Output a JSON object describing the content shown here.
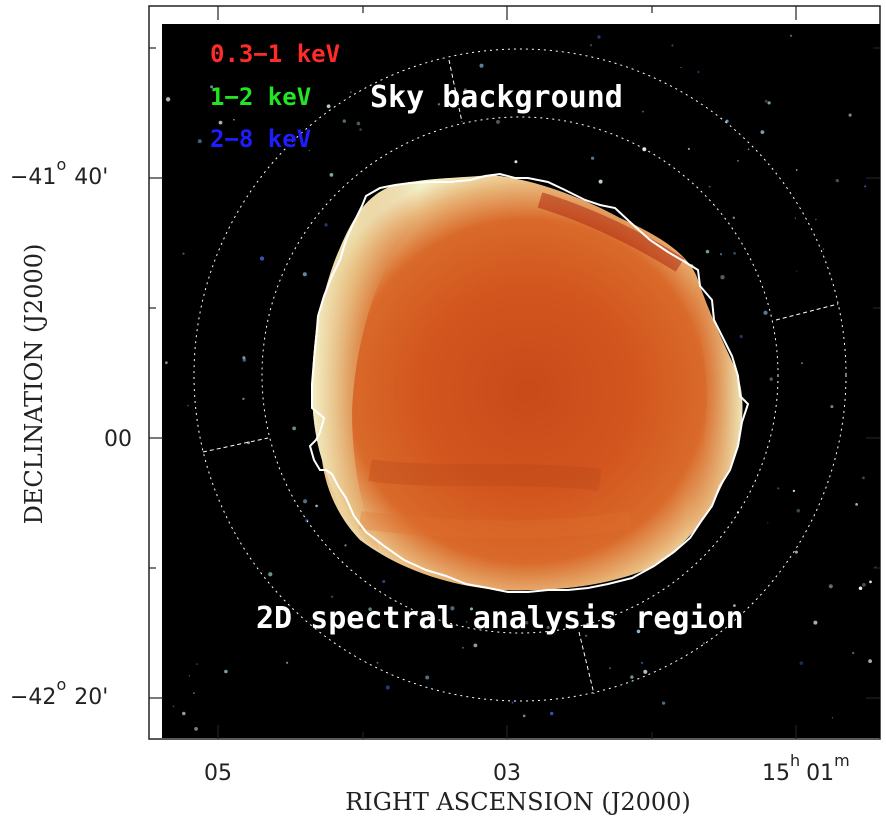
{
  "axes": {
    "x_label": "RIGHT ASCENSION (J2000)",
    "y_label": "DECLINATION (J2000)",
    "x_ticks": [
      {
        "text": "05"
      },
      {
        "text": "03"
      },
      {
        "text": "15",
        "sup_h": "h",
        "val2": "01",
        "sup_m": "m"
      }
    ],
    "y_ticks": [
      {
        "text": "−41",
        "sup": "o",
        "rest": "40'"
      },
      {
        "text": "00"
      },
      {
        "text": "−42",
        "sup": "o",
        "rest": "20'"
      }
    ]
  },
  "legend": [
    {
      "label": "0.3−1 keV",
      "color": "#ff2a2a"
    },
    {
      "label": "1−2 keV",
      "color": "#22e622"
    },
    {
      "label": "2−8 keV",
      "color": "#1d1dff"
    }
  ],
  "annotations": {
    "sky_background": "Sky background",
    "analysis_region": "2D spectral analysis region"
  },
  "colors": {
    "plot_background": "#000000",
    "remnant_core": "#d2551e",
    "remnant_rim": "#f2f0c6",
    "outline": "#ffffff"
  }
}
